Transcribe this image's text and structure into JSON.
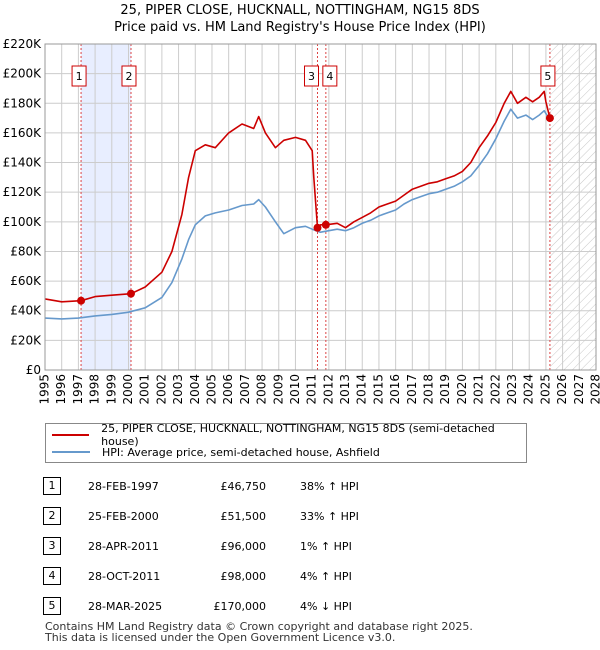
{
  "title_line1": "25, PIPER CLOSE, HUCKNALL, NOTTINGHAM, NG15 8DS",
  "title_line2": "Price paid vs. HM Land Registry's House Price Index (HPI)",
  "colors": {
    "property": "#cc0000",
    "hpi": "#6699cc",
    "shade": "#e8eeff",
    "grid": "#cccccc"
  },
  "chart_data": {
    "type": "line",
    "y_ticks": [
      "£0",
      "£20K",
      "£40K",
      "£60K",
      "£80K",
      "£100K",
      "£120K",
      "£140K",
      "£160K",
      "£180K",
      "£200K",
      "£220K"
    ],
    "x_ticks": [
      "1995",
      "1996",
      "1997",
      "1998",
      "1999",
      "2000",
      "2001",
      "2002",
      "2003",
      "2004",
      "2005",
      "2006",
      "2007",
      "2008",
      "2009",
      "2010",
      "2011",
      "2012",
      "2013",
      "2014",
      "2015",
      "2016",
      "2017",
      "2018",
      "2019",
      "2020",
      "2021",
      "2022",
      "2023",
      "2024",
      "2025",
      "2026",
      "2027",
      "2028"
    ],
    "xlim": [
      1995,
      2028
    ],
    "ylim": [
      0,
      220000
    ],
    "shaded_periods": [
      [
        1997.16,
        2000.15
      ]
    ],
    "hatched_from": 2025.24,
    "series": [
      {
        "name": "25, PIPER CLOSE, HUCKNALL, NOTTINGHAM, NG15 8DS (semi-detached house)",
        "color_key": "property",
        "x": [
          1995.0,
          1996.0,
          1997.16,
          1998.0,
          1999.0,
          2000.15,
          2001.0,
          2002.0,
          2002.6,
          2003.2,
          2003.6,
          2004.0,
          2004.6,
          2005.2,
          2006.0,
          2006.8,
          2007.5,
          2007.8,
          2008.2,
          2008.8,
          2009.3,
          2010.0,
          2010.6,
          2011.0,
          2011.1,
          2011.32,
          2011.5,
          2011.82,
          2012.5,
          2013.0,
          2013.5,
          2014.0,
          2014.5,
          2015.0,
          2015.5,
          2016.0,
          2016.5,
          2017.0,
          2017.5,
          2018.0,
          2018.5,
          2019.0,
          2019.5,
          2020.0,
          2020.5,
          2021.0,
          2021.5,
          2022.0,
          2022.5,
          2022.9,
          2023.3,
          2023.8,
          2024.2,
          2024.6,
          2024.9,
          2025.0,
          2025.24
        ],
        "y": [
          48000,
          46000,
          46750,
          49500,
          50500,
          51500,
          56000,
          66000,
          80000,
          105000,
          130000,
          148000,
          152000,
          150000,
          160000,
          166000,
          163000,
          171000,
          160000,
          150000,
          155000,
          157000,
          155000,
          148000,
          130000,
          96000,
          98000,
          98000,
          99000,
          96000,
          100000,
          103000,
          106000,
          110000,
          112000,
          114000,
          118000,
          122000,
          124000,
          126000,
          127000,
          129000,
          131000,
          134000,
          140000,
          150000,
          158000,
          167000,
          180000,
          188000,
          180000,
          184000,
          181000,
          184000,
          188000,
          181000,
          170000
        ]
      },
      {
        "name": "HPI: Average price, semi-detached house, Ashfield",
        "color_key": "hpi",
        "x": [
          1995.0,
          1996.0,
          1997.0,
          1998.0,
          1999.0,
          2000.0,
          2001.0,
          2002.0,
          2002.6,
          2003.2,
          2003.6,
          2004.0,
          2004.6,
          2005.2,
          2006.0,
          2006.8,
          2007.5,
          2007.8,
          2008.2,
          2008.8,
          2009.3,
          2010.0,
          2010.6,
          2011.0,
          2011.5,
          2012.0,
          2012.5,
          2013.0,
          2013.5,
          2014.0,
          2014.5,
          2015.0,
          2015.5,
          2016.0,
          2016.5,
          2017.0,
          2017.5,
          2018.0,
          2018.5,
          2019.0,
          2019.5,
          2020.0,
          2020.5,
          2021.0,
          2021.5,
          2022.0,
          2022.5,
          2022.9,
          2023.3,
          2023.8,
          2024.2,
          2024.6,
          2024.9,
          2025.0,
          2025.3
        ],
        "y": [
          35000,
          34500,
          35000,
          36500,
          37500,
          39000,
          42000,
          49000,
          59000,
          75000,
          88000,
          98000,
          104000,
          106000,
          108000,
          111000,
          112000,
          115000,
          110000,
          100000,
          92000,
          96000,
          97000,
          95000,
          93000,
          94000,
          95000,
          94000,
          96000,
          99000,
          101000,
          104000,
          106000,
          108000,
          112000,
          115000,
          117000,
          119000,
          120000,
          122000,
          124000,
          127000,
          131000,
          138000,
          146000,
          156000,
          168000,
          176000,
          170000,
          172000,
          169000,
          172000,
          175000,
          173000,
          168000
        ]
      }
    ],
    "markers": [
      {
        "label": "1",
        "x": 1997.16,
        "y": 46750
      },
      {
        "label": "2",
        "x": 2000.15,
        "y": 51500
      },
      {
        "label": "3",
        "x": 2011.32,
        "y": 96000
      },
      {
        "label": "4",
        "x": 2011.82,
        "y": 98000
      },
      {
        "label": "5",
        "x": 2025.24,
        "y": 170000
      }
    ]
  },
  "legend": {
    "property": "25, PIPER CLOSE, HUCKNALL, NOTTINGHAM, NG15 8DS (semi-detached house)",
    "hpi": "HPI: Average price, semi-detached house, Ashfield"
  },
  "transactions": [
    {
      "num": "1",
      "date": "28-FEB-1997",
      "price": "£46,750",
      "hpi": "38% ↑ HPI"
    },
    {
      "num": "2",
      "date": "25-FEB-2000",
      "price": "£51,500",
      "hpi": "33% ↑ HPI"
    },
    {
      "num": "3",
      "date": "28-APR-2011",
      "price": "£96,000",
      "hpi": "1% ↑ HPI"
    },
    {
      "num": "4",
      "date": "28-OCT-2011",
      "price": "£98,000",
      "hpi": "4% ↑ HPI"
    },
    {
      "num": "5",
      "date": "28-MAR-2025",
      "price": "£170,000",
      "hpi": "4% ↓ HPI"
    }
  ],
  "footer": {
    "line1": "Contains HM Land Registry data © Crown copyright and database right 2025.",
    "line2": "This data is licensed under the Open Government Licence v3.0."
  }
}
